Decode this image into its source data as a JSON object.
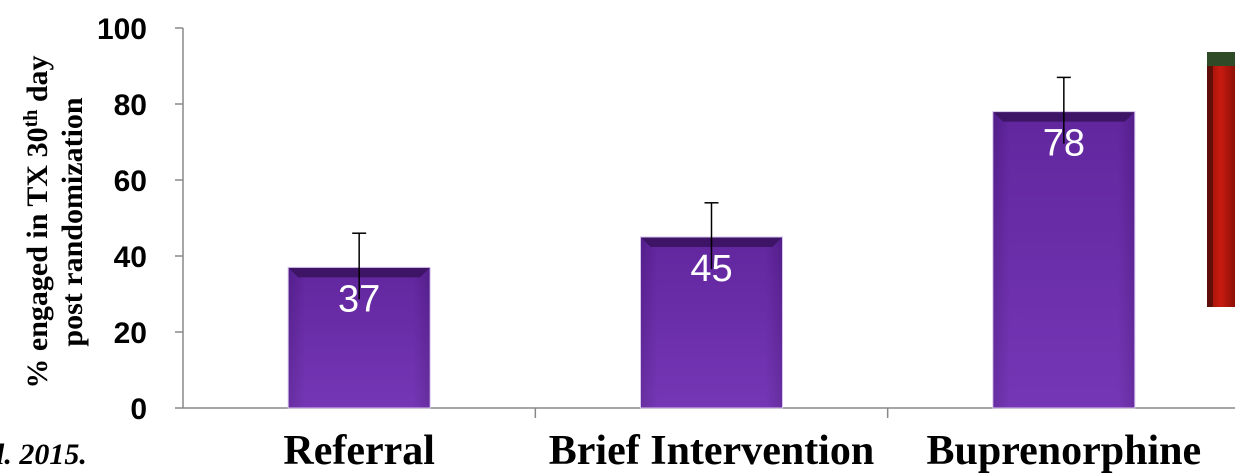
{
  "chart_data": {
    "type": "bar",
    "categories": [
      "Referral",
      "Brief Intervention",
      "Buprenorphine"
    ],
    "values": [
      37,
      45,
      78
    ],
    "error_upper": [
      46,
      54,
      87
    ],
    "data_labels": [
      "37",
      "45",
      "78"
    ],
    "ylabel_line1": "% engaged in TX 30",
    "ylabel_superscript": "th",
    "ylabel_line1_end": " day",
    "ylabel_line2": "post randomization",
    "ylim": [
      0,
      100
    ],
    "yticks": [
      "0",
      "20",
      "40",
      "60",
      "80",
      "100"
    ],
    "grid": false,
    "legend": "none",
    "bar_color": "#6a2c9e"
  },
  "citation": "l. 2015.",
  "colors": {
    "bar_light": "#8a4fc4",
    "bar_dark": "#4e1d7d",
    "photo_red": "#c0180e",
    "photo_green": "#2f4a26"
  }
}
